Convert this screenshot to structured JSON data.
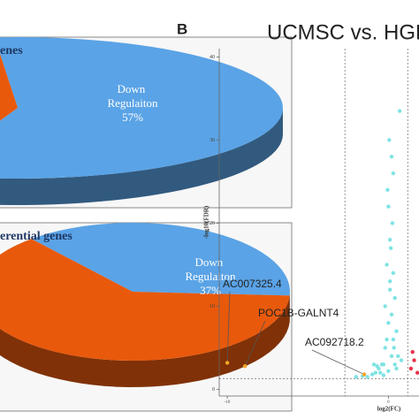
{
  "chart_data": [
    {
      "type": "pie",
      "title": "enes",
      "categories": [
        "Down Regulaiton",
        null
      ],
      "values": [
        57,
        43
      ],
      "value_labels": [
        "57%",
        null
      ],
      "colors": [
        "#5aa3e6",
        "#e8590c"
      ]
    },
    {
      "type": "pie",
      "title": "erential genes",
      "categories": [
        "Down Regulaiton",
        null
      ],
      "values": [
        37,
        63
      ],
      "value_labels": [
        "37%",
        null
      ],
      "colors": [
        "#5aa3e6",
        "#e8590c"
      ]
    },
    {
      "type": "scatter",
      "panel": "B",
      "title": "UCMSC vs. HGF",
      "xlabel": "log2(FC)",
      "ylabel": "-log10(FDR)",
      "xlim": [
        -10.5,
        1.9
      ],
      "ylim": [
        -0.8,
        41
      ],
      "xticks": [
        -10,
        0
      ],
      "yticks": [
        0,
        10,
        20,
        30,
        40
      ],
      "vlines": [
        -2.7,
        1.2
      ],
      "hline": 1.3,
      "series": [
        {
          "color": "#7fe3e3",
          "x": [
            -0.5,
            -0.3,
            -0.2,
            0,
            0.1,
            0.2,
            0.3,
            -0.1,
            0.4,
            0.5,
            -0.6,
            -0.8,
            0.6,
            0.1,
            0,
            -0.2,
            0.2,
            -0.4,
            0.3,
            0.7,
            -1,
            -1.3,
            -0.9,
            0.2,
            0.4,
            -0.1,
            0,
            0.1,
            0.5,
            -0.3,
            0.15,
            -0.05,
            0.25,
            0.35,
            -0.7,
            0.8,
            -1.6,
            -2,
            0.05,
            0.3
          ],
          "values": [
            2,
            3,
            5,
            8,
            12,
            4,
            6,
            15,
            3,
            7,
            2.5,
            2,
            4,
            18,
            22,
            10,
            9,
            3,
            26,
            33.5,
            1.8,
            1.5,
            3,
            28,
            11,
            6,
            2.2,
            13,
            2.5,
            1.7,
            17,
            24,
            20,
            5,
            2.8,
            3.5,
            1.6,
            1.5,
            30,
            14
          ]
        },
        {
          "color": "#e8334a",
          "x": [
            1.4,
            1.6,
            1.8,
            1.5
          ],
          "values": [
            2.5,
            3.5,
            2,
            4.5
          ]
        },
        {
          "color": "#f5a623",
          "x": [
            -10,
            -8.9,
            -1.5
          ],
          "values": [
            3.2,
            2.8,
            1.8
          ],
          "labels": [
            "AC007325.4",
            "POC1B-GALNT4",
            "AC092718.2"
          ]
        }
      ]
    }
  ]
}
